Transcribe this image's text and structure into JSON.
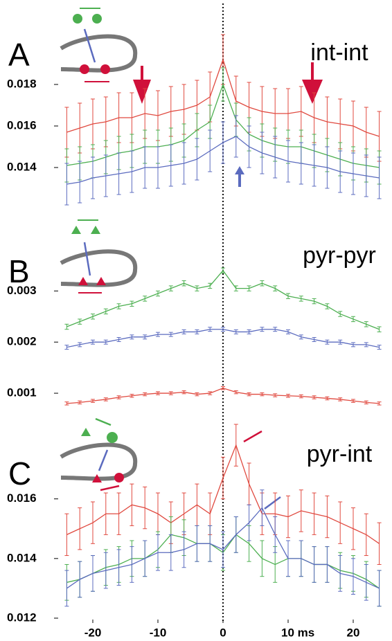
{
  "chart_data": [
    {
      "type": "line",
      "panel": "A",
      "title": "int-int",
      "x": [
        -24,
        -22,
        -20,
        -18,
        -16,
        -14,
        -12,
        -10,
        -8,
        -6,
        -4,
        -2,
        0,
        2,
        4,
        6,
        8,
        10,
        12,
        14,
        16,
        18,
        20,
        22,
        24
      ],
      "xlim": [
        -25,
        25
      ],
      "ylim": [
        0.012,
        0.02
      ],
      "yticks": [
        0.014,
        0.016,
        0.018
      ],
      "series": [
        {
          "color": "#e0493f",
          "values": [
            0.0157,
            0.0159,
            0.0161,
            0.0162,
            0.0164,
            0.0164,
            0.0166,
            0.0165,
            0.0167,
            0.0168,
            0.017,
            0.0174,
            0.0192,
            0.0172,
            0.0169,
            0.0167,
            0.0166,
            0.0166,
            0.0167,
            0.0164,
            0.0162,
            0.0161,
            0.016,
            0.0157,
            0.0155
          ],
          "errors": [
            0.0012,
            0.0012,
            0.0012,
            0.0012,
            0.0012,
            0.0012,
            0.0012,
            0.0012,
            0.0012,
            0.0012,
            0.0012,
            0.0012,
            0.0012,
            0.0012,
            0.0012,
            0.0012,
            0.0012,
            0.0012,
            0.0012,
            0.0012,
            0.0012,
            0.0012,
            0.0012,
            0.0012,
            0.0012
          ]
        },
        {
          "color": "#4caf50",
          "values": [
            0.0141,
            0.0142,
            0.0143,
            0.0145,
            0.0147,
            0.0148,
            0.015,
            0.015,
            0.0151,
            0.0153,
            0.0158,
            0.0162,
            0.018,
            0.0163,
            0.0156,
            0.0153,
            0.0151,
            0.015,
            0.015,
            0.0148,
            0.0146,
            0.0144,
            0.0142,
            0.0141,
            0.014
          ],
          "errors": [
            0.0008,
            0.0008,
            0.0008,
            0.0008,
            0.0008,
            0.0008,
            0.0008,
            0.0008,
            0.0008,
            0.0008,
            0.0008,
            0.0008,
            0.0008,
            0.0008,
            0.0008,
            0.0008,
            0.0008,
            0.0008,
            0.0008,
            0.0008,
            0.0008,
            0.0008,
            0.0008,
            0.0008,
            0.0008
          ]
        },
        {
          "color": "#5b6bbf",
          "values": [
            0.0132,
            0.0133,
            0.0135,
            0.0136,
            0.0137,
            0.0138,
            0.014,
            0.014,
            0.0141,
            0.0142,
            0.0144,
            0.0148,
            0.0152,
            0.0155,
            0.015,
            0.0147,
            0.0145,
            0.0143,
            0.0142,
            0.0141,
            0.014,
            0.0138,
            0.0137,
            0.0136,
            0.0135
          ],
          "errors": [
            0.001,
            0.001,
            0.001,
            0.001,
            0.001,
            0.001,
            0.001,
            0.001,
            0.001,
            0.001,
            0.001,
            0.001,
            0.001,
            0.001,
            0.001,
            0.001,
            0.001,
            0.001,
            0.001,
            0.001,
            0.001,
            0.001,
            0.001,
            0.001,
            0.001
          ]
        }
      ]
    },
    {
      "type": "line",
      "panel": "B",
      "title": "pyr-pyr",
      "x": [
        -24,
        -22,
        -20,
        -18,
        -16,
        -14,
        -12,
        -10,
        -8,
        -6,
        -4,
        -2,
        0,
        2,
        4,
        6,
        8,
        10,
        12,
        14,
        16,
        18,
        20,
        22,
        24
      ],
      "xlim": [
        -25,
        25
      ],
      "ylim": [
        0.0005,
        0.0036
      ],
      "yticks": [
        0.001,
        0.002,
        0.003
      ],
      "series": [
        {
          "color": "#4caf50",
          "values": [
            0.0023,
            0.0024,
            0.0025,
            0.0026,
            0.0027,
            0.00275,
            0.00285,
            0.00295,
            0.00305,
            0.00315,
            0.00305,
            0.0031,
            0.0034,
            0.00305,
            0.00305,
            0.00315,
            0.00305,
            0.0029,
            0.00285,
            0.0028,
            0.0027,
            0.00255,
            0.00245,
            0.00235,
            0.00225
          ],
          "errors": [
            5e-05,
            5e-05,
            5e-05,
            5e-05,
            5e-05,
            5e-05,
            5e-05,
            5e-05,
            5e-05,
            5e-05,
            5e-05,
            5e-05,
            5e-05,
            5e-05,
            5e-05,
            5e-05,
            5e-05,
            5e-05,
            5e-05,
            5e-05,
            5e-05,
            5e-05,
            5e-05,
            5e-05,
            5e-05
          ]
        },
        {
          "color": "#5b6bbf",
          "values": [
            0.0019,
            0.00195,
            0.002,
            0.002,
            0.00205,
            0.0021,
            0.0021,
            0.00215,
            0.00215,
            0.0022,
            0.0022,
            0.00225,
            0.00225,
            0.0022,
            0.0022,
            0.00225,
            0.00225,
            0.0022,
            0.0021,
            0.00205,
            0.002,
            0.002,
            0.00195,
            0.00195,
            0.0019
          ],
          "errors": [
            4e-05,
            4e-05,
            4e-05,
            4e-05,
            4e-05,
            4e-05,
            4e-05,
            4e-05,
            4e-05,
            4e-05,
            4e-05,
            4e-05,
            4e-05,
            4e-05,
            4e-05,
            4e-05,
            4e-05,
            4e-05,
            4e-05,
            4e-05,
            4e-05,
            4e-05,
            4e-05,
            4e-05,
            4e-05
          ]
        },
        {
          "color": "#e0493f",
          "values": [
            0.0008,
            0.00082,
            0.00085,
            0.00088,
            0.00092,
            0.00095,
            0.00098,
            0.001,
            0.001,
            0.00102,
            0.00098,
            0.001,
            0.0011,
            0.00102,
            0.00098,
            0.00098,
            0.00096,
            0.00095,
            0.00094,
            0.00092,
            0.0009,
            0.00088,
            0.00085,
            0.00082,
            0.0008
          ],
          "errors": [
            3e-05,
            3e-05,
            3e-05,
            3e-05,
            3e-05,
            3e-05,
            3e-05,
            3e-05,
            3e-05,
            3e-05,
            3e-05,
            3e-05,
            3e-05,
            3e-05,
            3e-05,
            3e-05,
            3e-05,
            3e-05,
            3e-05,
            3e-05,
            3e-05,
            3e-05,
            3e-05,
            3e-05,
            3e-05
          ]
        }
      ]
    },
    {
      "type": "line",
      "panel": "C",
      "title": "pyr-int",
      "x": [
        -24,
        -22,
        -20,
        -18,
        -16,
        -14,
        -12,
        -10,
        -8,
        -6,
        -4,
        -2,
        0,
        2,
        4,
        6,
        8,
        10,
        12,
        14,
        16,
        18,
        20,
        22,
        24
      ],
      "xlim": [
        -25,
        25
      ],
      "ylim": [
        0.012,
        0.0185
      ],
      "yticks": [
        0.012,
        0.014,
        0.016
      ],
      "xticks": [
        -20,
        -10,
        0,
        {
          "value": 10,
          "label": "10 ms"
        },
        20
      ],
      "series": [
        {
          "color": "#e0493f",
          "values": [
            0.0148,
            0.015,
            0.0152,
            0.0155,
            0.0155,
            0.0158,
            0.0157,
            0.0155,
            0.0152,
            0.0155,
            0.0158,
            0.0155,
            0.0167,
            0.0178,
            0.0165,
            0.0155,
            0.0155,
            0.0154,
            0.0156,
            0.0155,
            0.0154,
            0.0152,
            0.015,
            0.0148,
            0.0145
          ],
          "errors": [
            0.0007,
            0.0007,
            0.0007,
            0.0007,
            0.0007,
            0.0007,
            0.0007,
            0.0007,
            0.0007,
            0.0007,
            0.0007,
            0.0007,
            0.0007,
            0.0007,
            0.0007,
            0.0007,
            0.0007,
            0.0007,
            0.0007,
            0.0007,
            0.0007,
            0.0007,
            0.0007,
            0.0007,
            0.0007
          ]
        },
        {
          "color": "#4caf50",
          "values": [
            0.0132,
            0.0133,
            0.0135,
            0.0137,
            0.0138,
            0.014,
            0.014,
            0.0143,
            0.0148,
            0.0147,
            0.0145,
            0.0145,
            0.0142,
            0.0148,
            0.0145,
            0.014,
            0.0138,
            0.014,
            0.014,
            0.0138,
            0.0138,
            0.0136,
            0.0135,
            0.0133,
            0.013
          ],
          "errors": [
            0.0006,
            0.0006,
            0.0006,
            0.0006,
            0.0006,
            0.0006,
            0.0006,
            0.0006,
            0.0006,
            0.0006,
            0.0006,
            0.0006,
            0.0006,
            0.0006,
            0.0006,
            0.0006,
            0.0006,
            0.0006,
            0.0006,
            0.0006,
            0.0006,
            0.0006,
            0.0006,
            0.0006,
            0.0006
          ]
        },
        {
          "color": "#5b6bbf",
          "values": [
            0.013,
            0.0133,
            0.0135,
            0.0136,
            0.0137,
            0.0138,
            0.014,
            0.0142,
            0.0142,
            0.0143,
            0.0145,
            0.0145,
            0.0143,
            0.0148,
            0.0152,
            0.0157,
            0.0148,
            0.014,
            0.014,
            0.0138,
            0.0138,
            0.0135,
            0.0134,
            0.0132,
            0.013
          ],
          "errors": [
            0.0006,
            0.0006,
            0.0006,
            0.0006,
            0.0006,
            0.0006,
            0.0006,
            0.0006,
            0.0006,
            0.0006,
            0.0006,
            0.0006,
            0.0006,
            0.0006,
            0.0006,
            0.0006,
            0.0006,
            0.0006,
            0.0006,
            0.0006,
            0.0006,
            0.0006,
            0.0006,
            0.0006,
            0.0006
          ]
        }
      ]
    }
  ]
}
